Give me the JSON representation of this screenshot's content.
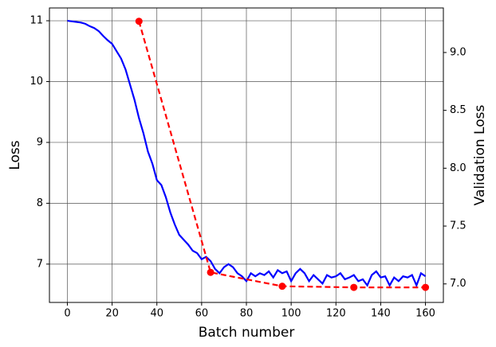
{
  "chart_data": {
    "type": "line",
    "xlabel": "Batch number",
    "ylabel": "Loss",
    "y2label": "Validation Loss",
    "xlim": [
      -8,
      168
    ],
    "xticks": [
      0,
      20,
      40,
      60,
      80,
      100,
      120,
      140,
      160
    ],
    "ylim": [
      6.37,
      11.21
    ],
    "yticks": [
      7,
      8,
      9,
      10,
      11
    ],
    "y2lim": [
      6.84,
      9.385
    ],
    "y2ticks": [
      {
        "value": 7,
        "label": "7.0"
      },
      7.5,
      {
        "value": 8,
        "label": "8.0"
      },
      8.5,
      {
        "value": 9,
        "label": "9.0"
      }
    ],
    "grid": true,
    "series": [
      {
        "color": "#0000ff",
        "style": "solid",
        "x": [
          0,
          2,
          4,
          6,
          8,
          10,
          12,
          14,
          16,
          18,
          20,
          22,
          24,
          26,
          28,
          30,
          32,
          34,
          36,
          38,
          40,
          42,
          44,
          46,
          48,
          50,
          52,
          54,
          56,
          58,
          60,
          62,
          64,
          66,
          68,
          70,
          72,
          74,
          76,
          78,
          80,
          82,
          84,
          86,
          88,
          90,
          92,
          94,
          96,
          98,
          100,
          102,
          104,
          106,
          108,
          110,
          112,
          114,
          116,
          118,
          120,
          122,
          124,
          126,
          128,
          130,
          132,
          134,
          136,
          138,
          140,
          142,
          144,
          146,
          148,
          150,
          152,
          154,
          156,
          158,
          160
        ],
        "values": [
          11.0,
          10.99,
          10.98,
          10.97,
          10.95,
          10.91,
          10.88,
          10.83,
          10.75,
          10.68,
          10.62,
          10.5,
          10.38,
          10.2,
          9.95,
          9.7,
          9.4,
          9.15,
          8.85,
          8.65,
          8.38,
          8.3,
          8.1,
          7.85,
          7.65,
          7.48,
          7.4,
          7.32,
          7.22,
          7.18,
          7.08,
          7.12,
          7.05,
          6.92,
          6.85,
          6.95,
          7.0,
          6.95,
          6.85,
          6.8,
          6.72,
          6.85,
          6.8,
          6.85,
          6.82,
          6.88,
          6.78,
          6.9,
          6.85,
          6.88,
          6.72,
          6.85,
          6.92,
          6.85,
          6.72,
          6.82,
          6.75,
          6.68,
          6.82,
          6.78,
          6.8,
          6.85,
          6.75,
          6.78,
          6.82,
          6.72,
          6.75,
          6.65,
          6.82,
          6.88,
          6.78,
          6.8,
          6.65,
          6.78,
          6.72,
          6.8,
          6.78,
          6.82,
          6.65,
          6.85,
          6.8
        ]
      },
      {
        "color": "#ff0000",
        "style": "dashed",
        "marker": "o",
        "axis": "y2",
        "x": [
          32,
          64,
          96,
          128,
          160
        ],
        "values": [
          9.27,
          7.1,
          6.98,
          6.97,
          6.97
        ]
      }
    ]
  }
}
